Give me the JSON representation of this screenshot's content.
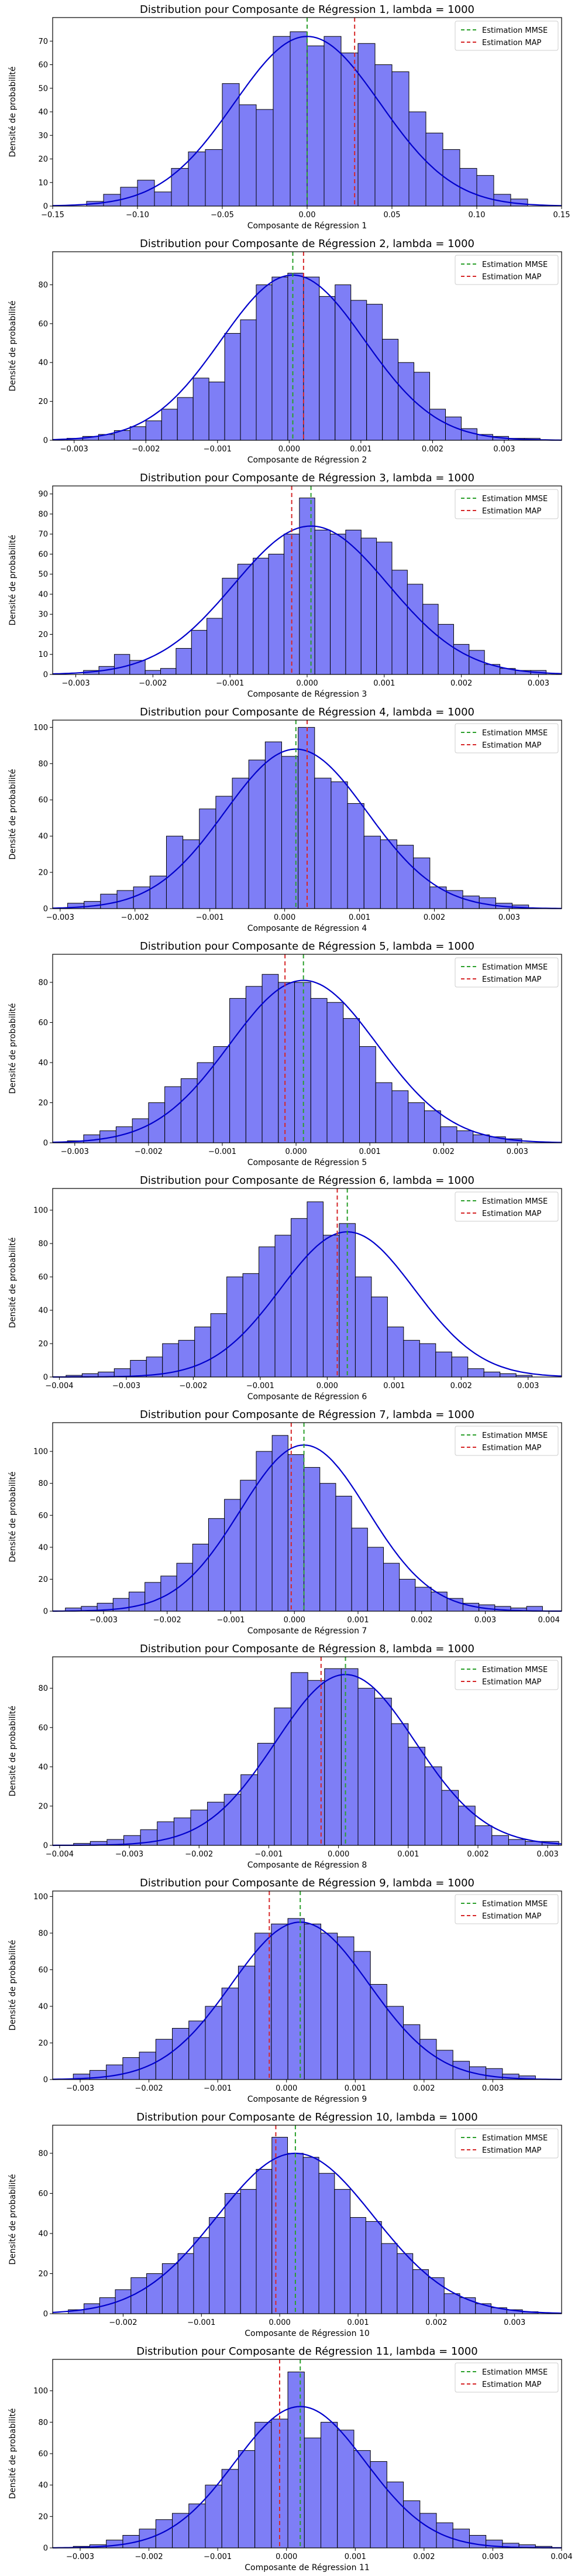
{
  "figure": {
    "legend_labels": {
      "mmse": "Estimation MMSE",
      "map": "Estimation MAP"
    },
    "colors": {
      "bars": "#7777f5",
      "bar_edge": "#000000",
      "kde": "#0000cc",
      "mmse": "#2ca02c",
      "map": "#d62728"
    }
  },
  "chart_data": [
    {
      "type": "bar",
      "title": "Distribution pour Composante de Régression 1, lambda = 1000",
      "xlabel": "Composante de Régression 1",
      "ylabel": "Densité de probabilité",
      "xlim": [
        -0.15,
        0.15
      ],
      "ylim": [
        0,
        80
      ],
      "xticks": [
        -0.15,
        -0.1,
        -0.05,
        0.0,
        0.05,
        0.1,
        0.15
      ],
      "xtick_labels": [
        "−0.15",
        "−0.10",
        "−0.05",
        "0.00",
        "0.05",
        "0.10",
        "0.15"
      ],
      "yticks": [
        0,
        10,
        20,
        30,
        40,
        50,
        60,
        70
      ],
      "ytick_labels": [
        "0",
        "10",
        "20",
        "30",
        "40",
        "50",
        "60",
        "70"
      ],
      "bins": {
        "start": -0.13,
        "width": 0.01
      },
      "values": [
        2,
        5,
        8,
        11,
        6,
        16,
        23,
        24,
        52,
        43,
        41,
        72,
        74,
        68,
        72,
        65,
        69,
        60,
        57,
        40,
        31,
        24,
        16,
        13,
        5,
        3
      ],
      "kde_sigma": 0.043,
      "kde_peak": 72,
      "mmse": 0.0,
      "map": 0.028,
      "legend": "top-right",
      "grid": false
    },
    {
      "type": "bar",
      "title": "Distribution pour Composante de Régression 2, lambda = 1000",
      "xlabel": "Composante de Régression 2",
      "ylabel": "Densité de probabilité",
      "xlim": [
        -0.0033,
        0.0038
      ],
      "ylim": [
        0,
        97
      ],
      "xticks": [
        -0.003,
        -0.002,
        -0.001,
        0.0,
        0.001,
        0.002,
        0.003
      ],
      "xtick_labels": [
        "−0.003",
        "−0.002",
        "−0.001",
        "0.000",
        "0.001",
        "0.002",
        "0.003"
      ],
      "yticks": [
        0,
        20,
        40,
        60,
        80
      ],
      "ytick_labels": [
        "0",
        "20",
        "40",
        "60",
        "80"
      ],
      "bins": {
        "start": -0.0031,
        "width": 0.00022
      },
      "values": [
        1,
        2,
        3,
        5,
        7,
        10,
        16,
        22,
        32,
        30,
        55,
        62,
        80,
        84,
        86,
        84,
        74,
        80,
        72,
        70,
        52,
        40,
        35,
        16,
        12,
        6,
        3,
        2,
        1,
        1
      ],
      "kde_sigma": 0.001,
      "kde_peak": 85,
      "mmse": 5e-05,
      "map": 0.0002,
      "legend": "top-right",
      "grid": false
    },
    {
      "type": "bar",
      "title": "Distribution pour Composante de Régression 3, lambda = 1000",
      "xlabel": "Composante de Régression 3",
      "ylabel": "Densité de probabilité",
      "xlim": [
        -0.0033,
        0.0033
      ],
      "ylim": [
        0,
        94
      ],
      "xticks": [
        -0.003,
        -0.002,
        -0.001,
        0.0,
        0.001,
        0.002,
        0.003
      ],
      "xtick_labels": [
        "−0.003",
        "−0.002",
        "−0.001",
        "0.000",
        "0.001",
        "0.002",
        "0.003"
      ],
      "yticks": [
        0,
        10,
        20,
        30,
        40,
        50,
        60,
        70,
        80,
        90
      ],
      "ytick_labels": [
        "0",
        "10",
        "20",
        "30",
        "40",
        "50",
        "60",
        "70",
        "80",
        "90"
      ],
      "bins": {
        "start": -0.0029,
        "width": 0.0002
      },
      "values": [
        2,
        4,
        10,
        7,
        2,
        3,
        13,
        22,
        28,
        48,
        55,
        58,
        60,
        70,
        88,
        72,
        70,
        72,
        68,
        66,
        52,
        45,
        35,
        25,
        15,
        12,
        5,
        3,
        2,
        2
      ],
      "kde_sigma": 0.001,
      "kde_peak": 74,
      "mmse": 5e-05,
      "map": -0.0002,
      "legend": "top-right",
      "grid": false
    },
    {
      "type": "bar",
      "title": "Distribution pour Composante de Régression 4, lambda = 1000",
      "xlabel": "Composante de Régression 4",
      "ylabel": "Densité de probabilité",
      "xlim": [
        -0.0031,
        0.0037
      ],
      "ylim": [
        0,
        104
      ],
      "xticks": [
        -0.003,
        -0.002,
        -0.001,
        0.0,
        0.001,
        0.002,
        0.003
      ],
      "xtick_labels": [
        "−0.003",
        "−0.002",
        "−0.001",
        "0.000",
        "0.001",
        "0.002",
        "0.003"
      ],
      "yticks": [
        0,
        20,
        40,
        60,
        80,
        100
      ],
      "ytick_labels": [
        "0",
        "20",
        "40",
        "60",
        "80",
        "100"
      ],
      "bins": {
        "start": -0.0029,
        "width": 0.00022
      },
      "values": [
        3,
        4,
        8,
        10,
        12,
        18,
        40,
        38,
        55,
        62,
        72,
        82,
        92,
        84,
        100,
        72,
        70,
        58,
        40,
        38,
        35,
        28,
        12,
        10,
        7,
        6,
        3,
        2
      ],
      "kde_sigma": 0.00095,
      "kde_peak": 88,
      "mmse": 0.00015,
      "map": 0.0003,
      "legend": "top-right",
      "grid": false
    },
    {
      "type": "bar",
      "title": "Distribution pour Composante de Régression 5, lambda = 1000",
      "xlabel": "Composante de Régression 5",
      "ylabel": "Densité de probabilité",
      "xlim": [
        -0.0033,
        0.0036
      ],
      "ylim": [
        0,
        94
      ],
      "xticks": [
        -0.003,
        -0.002,
        -0.001,
        0.0,
        0.001,
        0.002,
        0.003
      ],
      "xtick_labels": [
        "−0.003",
        "−0.002",
        "−0.001",
        "0.000",
        "0.001",
        "0.002",
        "0.003"
      ],
      "yticks": [
        0,
        20,
        40,
        60,
        80
      ],
      "ytick_labels": [
        "0",
        "20",
        "40",
        "60",
        "80"
      ],
      "bins": {
        "start": -0.0031,
        "width": 0.00022
      },
      "values": [
        1,
        4,
        6,
        8,
        12,
        20,
        28,
        32,
        40,
        48,
        72,
        78,
        84,
        80,
        80,
        72,
        70,
        62,
        48,
        30,
        26,
        20,
        16,
        8,
        6,
        4,
        3,
        2
      ],
      "kde_sigma": 0.001,
      "kde_peak": 81,
      "mmse": 0.0001,
      "map": -0.00015,
      "legend": "top-right",
      "grid": false
    },
    {
      "type": "bar",
      "title": "Distribution pour Composante de Régression 6, lambda = 1000",
      "xlabel": "Composante de Régression 6",
      "ylabel": "Densité de probabilité",
      "xlim": [
        -0.0041,
        0.0035
      ],
      "ylim": [
        0,
        113
      ],
      "xticks": [
        -0.004,
        -0.003,
        -0.002,
        -0.001,
        0.0,
        0.001,
        0.002,
        0.003
      ],
      "xtick_labels": [
        "−0.004",
        "−0.003",
        "−0.002",
        "−0.001",
        "0.000",
        "0.001",
        "0.002",
        "0.003"
      ],
      "yticks": [
        0,
        20,
        40,
        60,
        80,
        100
      ],
      "ytick_labels": [
        "0",
        "20",
        "40",
        "60",
        "80",
        "100"
      ],
      "bins": {
        "start": -0.0039,
        "width": 0.00024
      },
      "values": [
        1,
        2,
        3,
        5,
        10,
        12,
        20,
        22,
        30,
        38,
        60,
        62,
        78,
        85,
        95,
        105,
        85,
        92,
        60,
        48,
        30,
        22,
        20,
        15,
        12,
        5,
        3,
        2,
        1
      ],
      "kde_sigma": 0.001,
      "kde_peak": 87,
      "mmse": 0.0003,
      "map": 0.00015,
      "legend": "top-right",
      "grid": false
    },
    {
      "type": "bar",
      "title": "Distribution pour Composante de Régression 7, lambda = 1000",
      "xlabel": "Composante de Régression 7",
      "ylabel": "Densité de probabilité",
      "xlim": [
        -0.0038,
        0.0042
      ],
      "ylim": [
        0,
        118
      ],
      "xticks": [
        -0.003,
        -0.002,
        -0.001,
        0.0,
        0.001,
        0.002,
        0.003,
        0.004
      ],
      "xtick_labels": [
        "−0.003",
        "−0.002",
        "−0.001",
        "0.000",
        "0.001",
        "0.002",
        "0.003",
        "0.004"
      ],
      "yticks": [
        0,
        20,
        40,
        60,
        80,
        100
      ],
      "ytick_labels": [
        "0",
        "20",
        "40",
        "60",
        "80",
        "100"
      ],
      "bins": {
        "start": -0.0036,
        "width": 0.00025
      },
      "values": [
        2,
        3,
        5,
        8,
        12,
        18,
        22,
        30,
        42,
        58,
        70,
        82,
        100,
        110,
        98,
        90,
        80,
        72,
        52,
        40,
        30,
        20,
        15,
        12,
        8,
        5,
        4,
        3,
        2,
        3
      ],
      "kde_sigma": 0.001,
      "kde_peak": 104,
      "mmse": 0.00015,
      "map": -5e-05,
      "legend": "top-right",
      "grid": false
    },
    {
      "type": "bar",
      "title": "Distribution pour Composante de Régression 8, lambda = 1000",
      "xlabel": "Composante de Régression 8",
      "ylabel": "Densité de probabilité",
      "xlim": [
        -0.0041,
        0.0032
      ],
      "ylim": [
        0,
        96
      ],
      "xticks": [
        -0.004,
        -0.003,
        -0.002,
        -0.001,
        0.0,
        0.001,
        0.002,
        0.003
      ],
      "xtick_labels": [
        "−0.004",
        "−0.003",
        "−0.002",
        "−0.001",
        "0.000",
        "0.001",
        "0.002",
        "0.003"
      ],
      "yticks": [
        0,
        20,
        40,
        60,
        80
      ],
      "ytick_labels": [
        "0",
        "20",
        "40",
        "60",
        "80"
      ],
      "bins": {
        "start": -0.0038,
        "width": 0.00024
      },
      "values": [
        1,
        2,
        3,
        5,
        8,
        12,
        14,
        18,
        22,
        26,
        36,
        52,
        70,
        88,
        84,
        90,
        90,
        80,
        75,
        62,
        50,
        40,
        28,
        20,
        10,
        5,
        3,
        2,
        2
      ],
      "kde_sigma": 0.001,
      "kde_peak": 87,
      "mmse": 0.0001,
      "map": -0.00025,
      "legend": "top-right",
      "grid": false
    },
    {
      "type": "bar",
      "title": "Distribution pour Composante de Régression 9, lambda = 1000",
      "xlabel": "Composante de Régression 9",
      "ylabel": "Densité de probabilité",
      "xlim": [
        -0.0034,
        0.004
      ],
      "ylim": [
        0,
        103
      ],
      "xticks": [
        -0.003,
        -0.002,
        -0.001,
        0.0,
        0.001,
        0.002,
        0.003
      ],
      "xtick_labels": [
        "−0.003",
        "−0.002",
        "−0.001",
        "0.000",
        "0.001",
        "0.002",
        "0.003"
      ],
      "yticks": [
        0,
        20,
        40,
        60,
        80,
        100
      ],
      "ytick_labels": [
        "0",
        "20",
        "40",
        "60",
        "80",
        "100"
      ],
      "bins": {
        "start": -0.0031,
        "width": 0.00024
      },
      "values": [
        3,
        5,
        8,
        12,
        15,
        22,
        28,
        32,
        40,
        50,
        62,
        80,
        85,
        88,
        85,
        80,
        78,
        70,
        52,
        40,
        30,
        22,
        16,
        10,
        7,
        6,
        3,
        2
      ],
      "kde_sigma": 0.001,
      "kde_peak": 86,
      "mmse": 0.0002,
      "map": -0.00025,
      "legend": "top-right",
      "grid": false
    },
    {
      "type": "bar",
      "title": "Distribution pour Composante de Régression 10, lambda = 1000",
      "xlabel": "Composante de Régression 10",
      "ylabel": "Densité de probabilité",
      "xlim": [
        -0.0029,
        0.0036
      ],
      "ylim": [
        0,
        94
      ],
      "xticks": [
        -0.002,
        -0.001,
        0.0,
        0.001,
        0.002,
        0.003
      ],
      "xtick_labels": [
        "−0.002",
        "−0.001",
        "0.000",
        "0.001",
        "0.002",
        "0.003"
      ],
      "yticks": [
        0,
        20,
        40,
        60,
        80
      ],
      "ytick_labels": [
        "0",
        "20",
        "40",
        "60",
        "80"
      ],
      "bins": {
        "start": -0.0027,
        "width": 0.0002
      },
      "values": [
        2,
        5,
        8,
        12,
        18,
        20,
        25,
        30,
        38,
        48,
        60,
        62,
        72,
        88,
        80,
        78,
        70,
        62,
        48,
        46,
        35,
        30,
        22,
        18,
        10,
        8,
        5,
        3,
        2,
        1
      ],
      "kde_sigma": 0.001,
      "kde_peak": 80,
      "mmse": 0.0002,
      "map": -5e-05,
      "legend": "top-right",
      "grid": false
    },
    {
      "type": "bar",
      "title": "Distribution pour Composante de Régression 11, lambda = 1000",
      "xlabel": "Composante de Régression 11",
      "ylabel": "Densité de probabilité",
      "xlim": [
        -0.0034,
        0.004
      ],
      "ylim": [
        0,
        120
      ],
      "xticks": [
        -0.003,
        -0.002,
        -0.001,
        0.0,
        0.001,
        0.002,
        0.003,
        0.004
      ],
      "xtick_labels": [
        "−0.003",
        "−0.002",
        "−0.001",
        "0.000",
        "0.001",
        "0.002",
        "0.003",
        "0.004"
      ],
      "yticks": [
        0,
        20,
        40,
        60,
        80,
        100
      ],
      "ytick_labels": [
        "0",
        "20",
        "40",
        "60",
        "80",
        "100"
      ],
      "bins": {
        "start": -0.0031,
        "width": 0.00024
      },
      "values": [
        1,
        2,
        5,
        8,
        12,
        18,
        22,
        28,
        40,
        50,
        62,
        80,
        82,
        112,
        70,
        80,
        75,
        62,
        55,
        42,
        30,
        22,
        16,
        12,
        8,
        5,
        3,
        2,
        1
      ],
      "kde_sigma": 0.00095,
      "kde_peak": 90,
      "mmse": 0.0002,
      "map": -0.0001,
      "legend": "top-right",
      "grid": false
    }
  ]
}
